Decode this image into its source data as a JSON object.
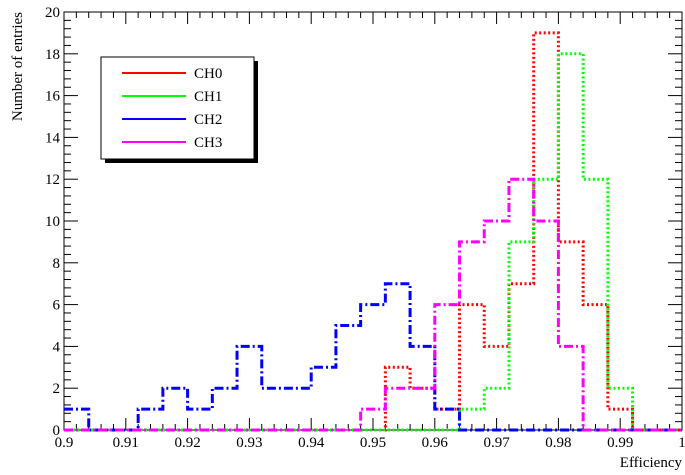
{
  "chart_data": {
    "type": "step-histogram",
    "title": "",
    "xlabel": "Efficiency",
    "ylabel": "Number of entries",
    "xlim": [
      0.9,
      1.0
    ],
    "ylim": [
      0,
      20
    ],
    "bin_width": 0.004,
    "bin_start": 0.9,
    "x_ticks": [
      "0.9",
      "0.91",
      "0.92",
      "0.93",
      "0.94",
      "0.95",
      "0.96",
      "0.97",
      "0.98",
      "0.99",
      "1"
    ],
    "y_ticks": [
      "0",
      "2",
      "4",
      "6",
      "8",
      "10",
      "12",
      "14",
      "16",
      "18",
      "20"
    ],
    "grid": false,
    "legend_position": "top-left",
    "series": [
      {
        "name": "CH0",
        "color": "#ff0000",
        "dash": "dotted",
        "values": [
          0,
          0,
          0,
          0,
          0,
          0,
          0,
          0,
          0,
          0,
          0,
          0,
          0,
          3,
          2,
          1,
          6,
          4,
          7,
          19,
          9,
          6,
          1,
          0,
          0
        ]
      },
      {
        "name": "CH1",
        "color": "#00ff00",
        "dash": "dotted",
        "values": [
          0,
          0,
          0,
          0,
          0,
          0,
          0,
          0,
          0,
          0,
          0,
          0,
          0,
          0,
          0,
          0,
          1,
          2,
          9,
          12,
          18,
          12,
          2,
          0,
          0
        ]
      },
      {
        "name": "CH2",
        "color": "#0000ff",
        "dash": "dash-dot",
        "values": [
          1,
          0,
          0,
          1,
          2,
          1,
          2,
          4,
          2,
          2,
          3,
          5,
          6,
          7,
          4,
          1,
          0,
          0,
          0,
          0,
          0,
          0,
          0,
          0,
          0
        ]
      },
      {
        "name": "CH3",
        "color": "#ff00ff",
        "dash": "dash-dot",
        "values": [
          0,
          0,
          0,
          0,
          0,
          0,
          0,
          0,
          0,
          0,
          0,
          0,
          1,
          2,
          2,
          6,
          9,
          10,
          12,
          10,
          4,
          0,
          0,
          0,
          0
        ]
      }
    ]
  }
}
